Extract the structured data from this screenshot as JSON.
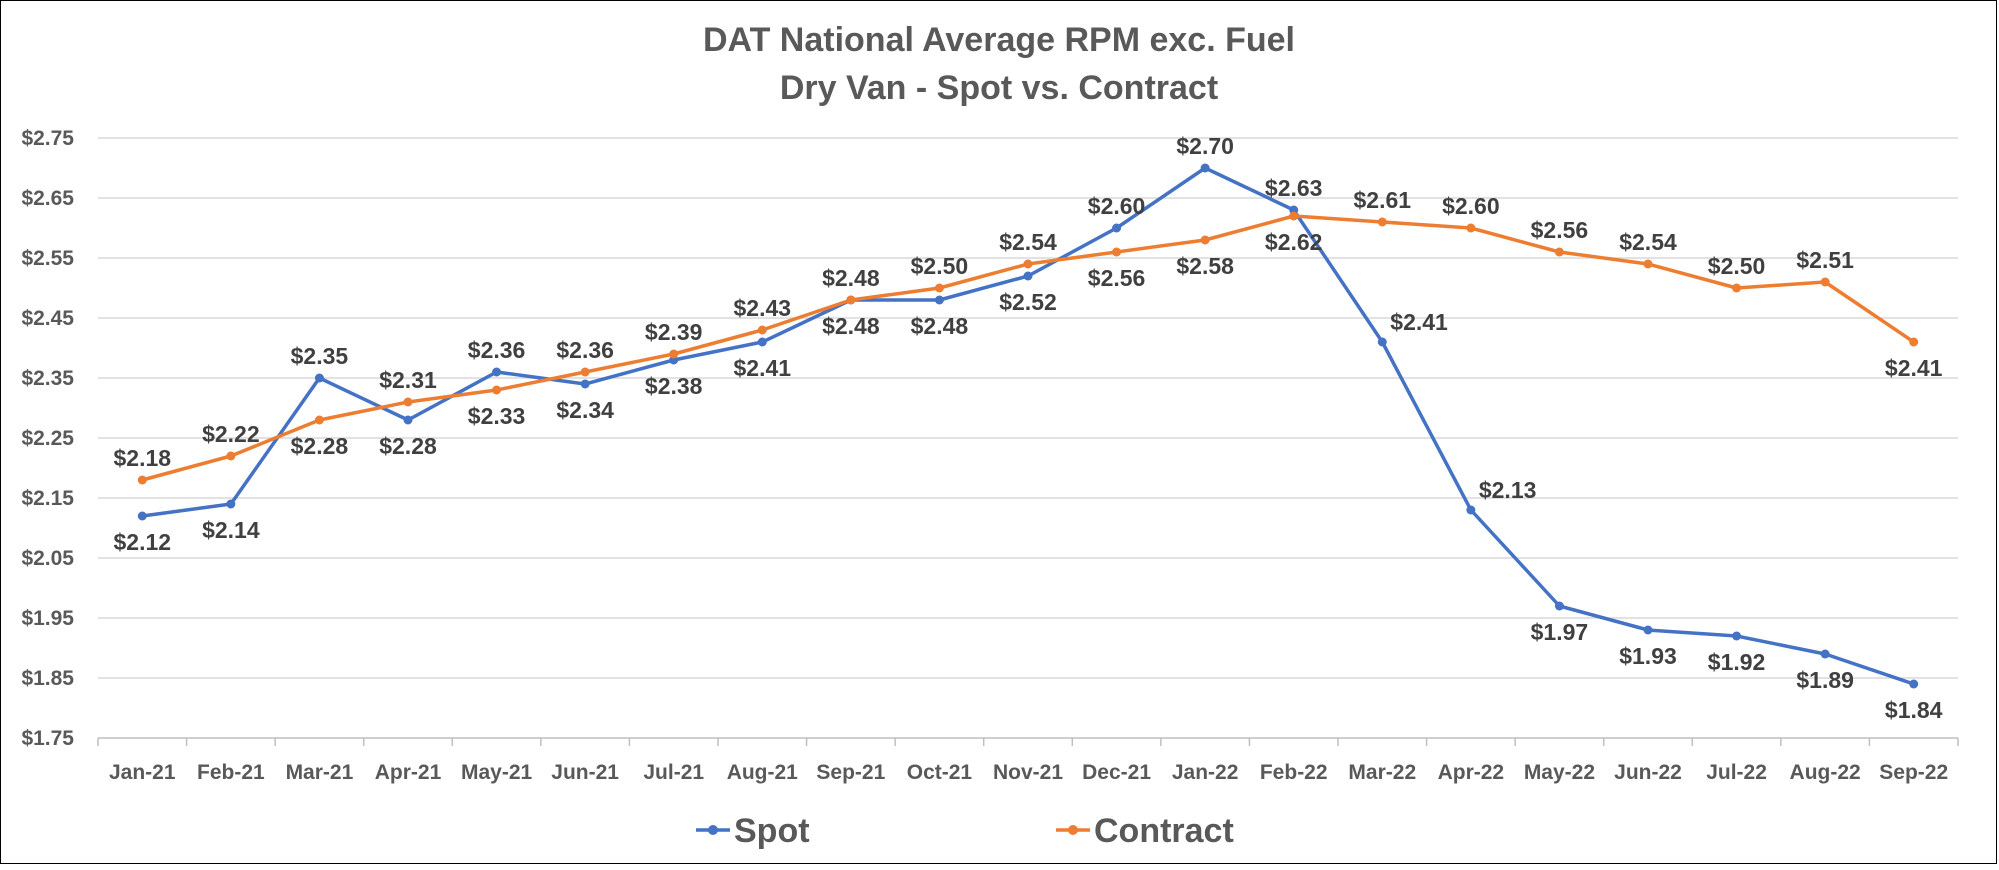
{
  "chart_data": {
    "type": "line",
    "title": "DAT National Average RPM exc. Fuel",
    "subtitle": "Dry Van - Spot vs. Contract",
    "categories": [
      "Jan-21",
      "Feb-21",
      "Mar-21",
      "Apr-21",
      "May-21",
      "Jun-21",
      "Jul-21",
      "Aug-21",
      "Sep-21",
      "Oct-21",
      "Nov-21",
      "Dec-21",
      "Jan-22",
      "Feb-22",
      "Mar-22",
      "Apr-22",
      "May-22",
      "Jun-22",
      "Jul-22",
      "Aug-22",
      "Sep-22"
    ],
    "y_ticks": [
      "$1.75",
      "$1.85",
      "$1.95",
      "$2.05",
      "$2.15",
      "$2.25",
      "$2.35",
      "$2.45",
      "$2.55",
      "$2.65",
      "$2.75"
    ],
    "ylim": [
      1.75,
      2.75
    ],
    "grid": true,
    "legend_position": "bottom",
    "series": [
      {
        "name": "Spot",
        "color": "#4472C4",
        "values": [
          2.12,
          2.14,
          2.35,
          2.28,
          2.36,
          2.34,
          2.38,
          2.41,
          2.48,
          2.48,
          2.52,
          2.6,
          2.7,
          2.63,
          2.41,
          2.13,
          1.97,
          1.93,
          1.92,
          1.89,
          1.84
        ],
        "labels": [
          "$2.12",
          "$2.14",
          "$2.35",
          "$2.28",
          "$2.36",
          "$2.34",
          "$2.38",
          "$2.41",
          "$2.48",
          "$2.48",
          "$2.52",
          "$2.60",
          "$2.70",
          "$2.63",
          "$2.41",
          "$2.13",
          "$1.97",
          "$1.93",
          "$1.92",
          "$1.89",
          "$1.84"
        ]
      },
      {
        "name": "Contract",
        "color": "#ED7D31",
        "values": [
          2.18,
          2.22,
          2.28,
          2.31,
          2.33,
          2.36,
          2.39,
          2.43,
          2.48,
          2.5,
          2.54,
          2.56,
          2.58,
          2.62,
          2.61,
          2.6,
          2.56,
          2.54,
          2.5,
          2.51,
          2.41
        ],
        "labels": [
          "$2.18",
          "$2.22",
          "$2.28",
          "$2.31",
          "$2.33",
          "$2.36",
          "$2.39",
          "$2.43",
          "$2.48",
          "$2.50",
          "$2.54",
          "$2.56",
          "$2.58",
          "$2.62",
          "$2.61",
          "$2.60",
          "$2.56",
          "$2.54",
          "$2.50",
          "$2.51",
          "$2.41"
        ]
      }
    ]
  }
}
